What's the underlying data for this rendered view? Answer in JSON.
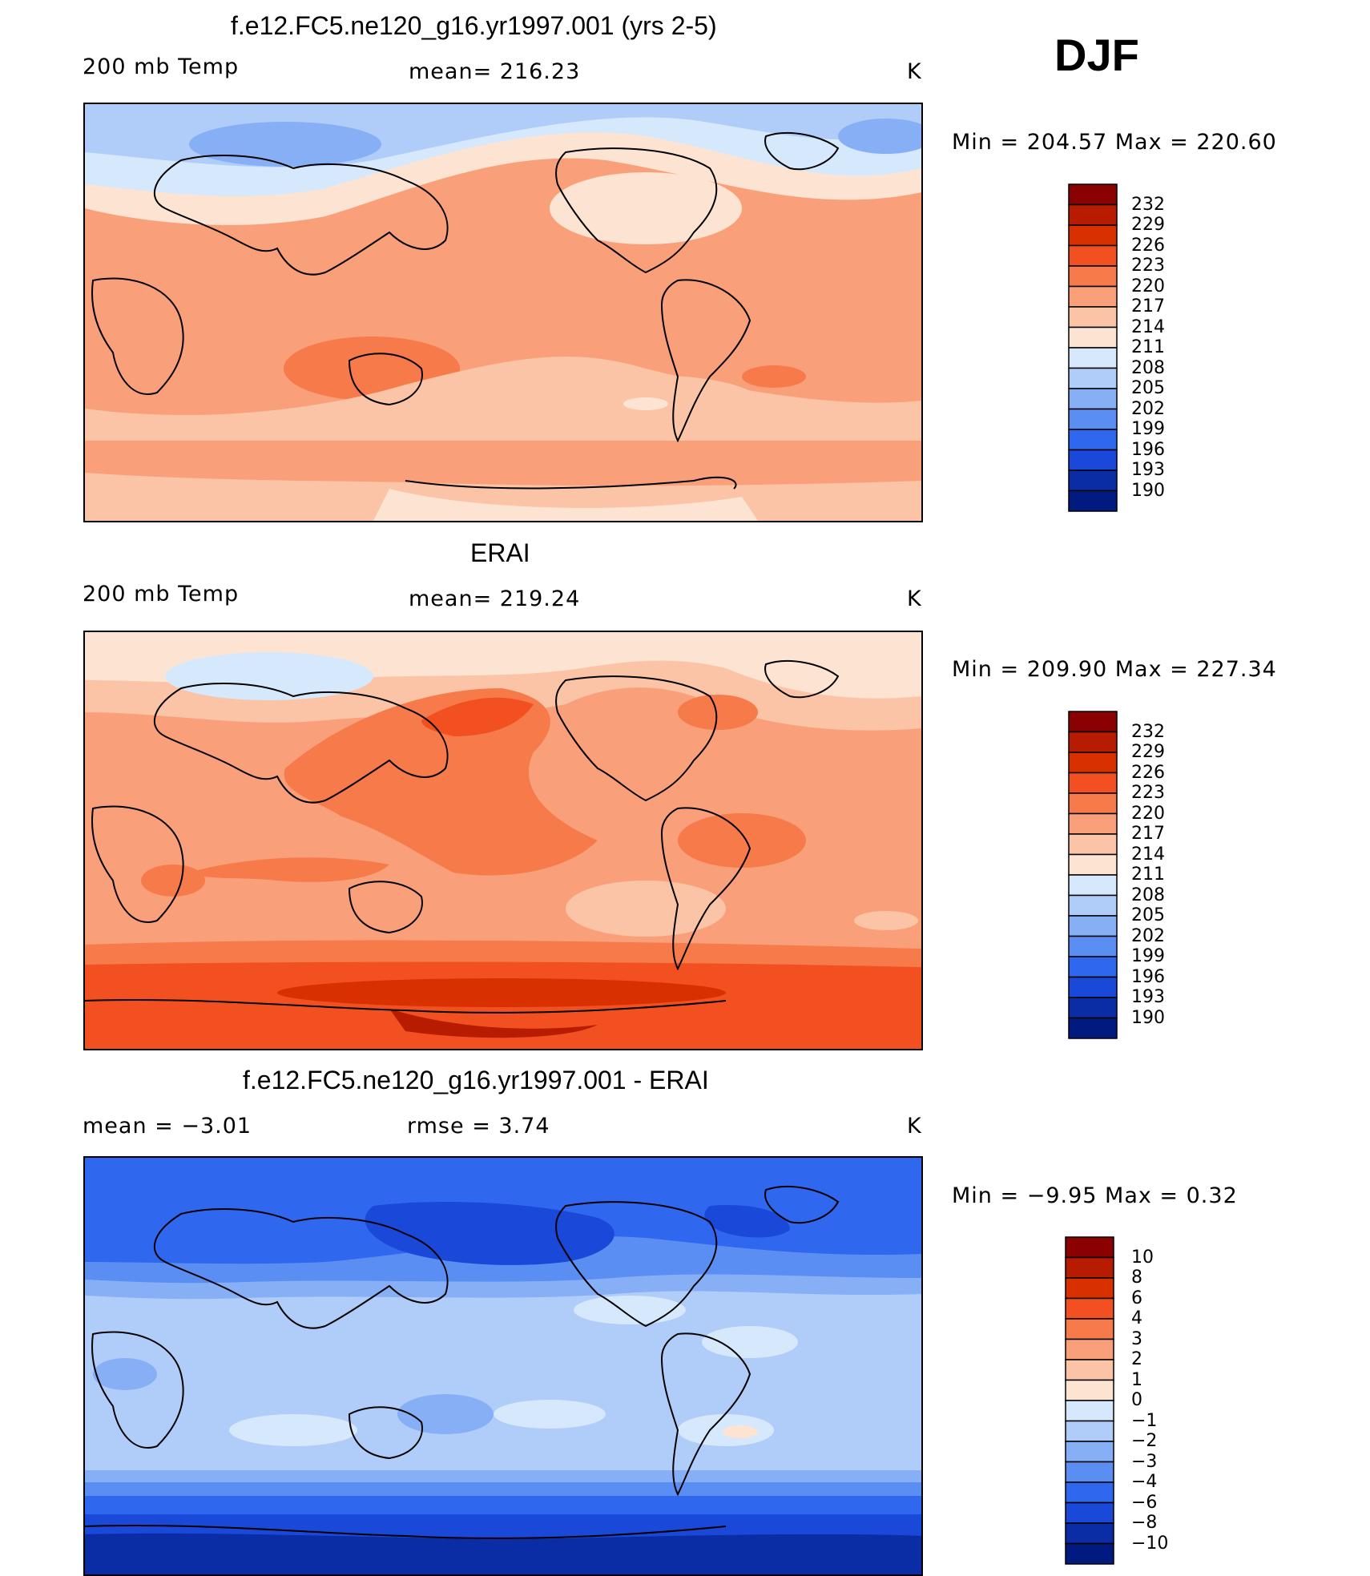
{
  "season": "DJF",
  "chart_data": [
    {
      "type": "heatmap",
      "title": "f.e12.FC5.ne120_g16.yr1997.001 (yrs 2-5)",
      "variable": "200 mb Temp",
      "stat_text": "mean=  216.23",
      "mean": 216.23,
      "units": "K",
      "minmax_text": "Min  =  204.57  Max  =  220.60",
      "min": 204.57,
      "max": 220.6,
      "levels": [
        "232",
        "229",
        "226",
        "223",
        "220",
        "217",
        "214",
        "211",
        "208",
        "205",
        "202",
        "199",
        "196",
        "193",
        "190"
      ],
      "colors": [
        "#8b0000",
        "#b81c00",
        "#d93000",
        "#f25020",
        "#f77a4a",
        "#f9a07a",
        "#fcc4a6",
        "#fde4d2",
        "#d6e8fb",
        "#b0cdfa",
        "#86aff6",
        "#5a8ef2",
        "#2f67ee",
        "#1a48d8",
        "#0a2ca4",
        "#001a80"
      ]
    },
    {
      "type": "heatmap",
      "title": "ERAI",
      "variable": "200 mb Temp",
      "stat_text": "mean=  219.24",
      "mean": 219.24,
      "units": "K",
      "minmax_text": "Min  =  209.90  Max  =  227.34",
      "min": 209.9,
      "max": 227.34,
      "levels": [
        "232",
        "229",
        "226",
        "223",
        "220",
        "217",
        "214",
        "211",
        "208",
        "205",
        "202",
        "199",
        "196",
        "193",
        "190"
      ],
      "colors": [
        "#8b0000",
        "#b81c00",
        "#d93000",
        "#f25020",
        "#f77a4a",
        "#f9a07a",
        "#fcc4a6",
        "#fde4d2",
        "#d6e8fb",
        "#b0cdfa",
        "#86aff6",
        "#5a8ef2",
        "#2f67ee",
        "#1a48d8",
        "#0a2ca4",
        "#001a80"
      ]
    },
    {
      "type": "heatmap",
      "title": "f.e12.FC5.ne120_g16.yr1997.001 - ERAI",
      "stat_left_text": "mean  =     −3.01",
      "stat_mid_text": "rmse  =     3.74",
      "mean": -3.01,
      "rmse": 3.74,
      "units": "K",
      "minmax_text": "Min  =    −9.95  Max  =      0.32",
      "min": -9.95,
      "max": 0.32,
      "levels": [
        "10",
        "8",
        "6",
        "4",
        "3",
        "2",
        "1",
        "0",
        "−1",
        "−2",
        "−3",
        "−4",
        "−6",
        "−8",
        "−10"
      ],
      "colors": [
        "#8b0000",
        "#b81c00",
        "#d93000",
        "#f25020",
        "#f77a4a",
        "#f9a07a",
        "#fcc4a6",
        "#fde4d2",
        "#d6e8fb",
        "#b0cdfa",
        "#86aff6",
        "#5a8ef2",
        "#2f67ee",
        "#1a48d8",
        "#0a2ca4",
        "#001a80"
      ]
    }
  ]
}
